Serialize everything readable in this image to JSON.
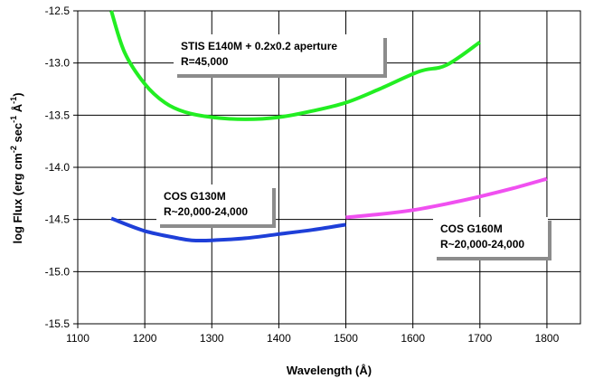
{
  "chart_data": {
    "type": "line",
    "title": "",
    "xlabel": "Wavelength (Å)",
    "ylabel": {
      "base": "log Flux (erg cm",
      "exp1": "-2",
      "mid": " sec",
      "exp2": "-1",
      "end": " Å",
      "exp3": "-1",
      "close": ")"
    },
    "xlim": [
      1100,
      1850
    ],
    "ylim": [
      -15.5,
      -12.5
    ],
    "xticks": [
      1100,
      1200,
      1300,
      1400,
      1500,
      1600,
      1700,
      1800
    ],
    "yticks": [
      -12.5,
      -13.0,
      -13.5,
      -14.0,
      -14.5,
      -15.0,
      -15.5
    ],
    "ytick_labels": [
      "-12.5",
      "-13.0",
      "-13.5",
      "-14.0",
      "-14.5",
      "-15.0",
      "-15.5"
    ],
    "grid": true,
    "series": [
      {
        "color": "#22ee22",
        "points": [
          [
            1150,
            -12.5
          ],
          [
            1170,
            -12.9
          ],
          [
            1200,
            -13.2
          ],
          [
            1230,
            -13.38
          ],
          [
            1260,
            -13.47
          ],
          [
            1300,
            -13.52
          ],
          [
            1350,
            -13.54
          ],
          [
            1400,
            -13.52
          ],
          [
            1450,
            -13.46
          ],
          [
            1500,
            -13.38
          ],
          [
            1550,
            -13.25
          ],
          [
            1610,
            -13.08
          ],
          [
            1650,
            -13.02
          ],
          [
            1700,
            -12.8
          ]
        ]
      },
      {
        "color": "#1e3fd8",
        "points": [
          [
            1150,
            -14.49
          ],
          [
            1200,
            -14.61
          ],
          [
            1250,
            -14.68
          ],
          [
            1270,
            -14.7
          ],
          [
            1300,
            -14.7
          ],
          [
            1350,
            -14.68
          ],
          [
            1400,
            -14.64
          ],
          [
            1450,
            -14.6
          ],
          [
            1500,
            -14.55
          ]
        ]
      },
      {
        "color": "#f050f0",
        "points": [
          [
            1500,
            -14.48
          ],
          [
            1550,
            -14.45
          ],
          [
            1600,
            -14.41
          ],
          [
            1650,
            -14.35
          ],
          [
            1700,
            -14.28
          ],
          [
            1750,
            -14.2
          ],
          [
            1800,
            -14.11
          ]
        ]
      }
    ],
    "annotations": [
      {
        "lines": [
          "STIS E140M + 0.2x0.2 aperture",
          "R=45,000"
        ]
      },
      {
        "lines": [
          "COS G130M",
          "R~20,000-24,000"
        ]
      },
      {
        "lines": [
          "COS G160M",
          "R~20,000-24,000"
        ]
      }
    ]
  }
}
